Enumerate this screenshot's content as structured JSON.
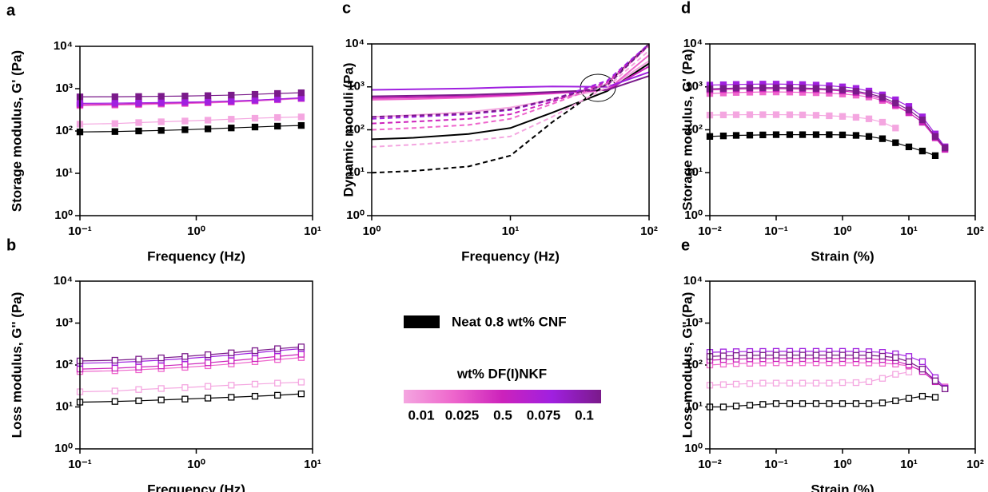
{
  "chart_data": [
    {
      "type": "line",
      "panel": "a",
      "xlabel": "Frequency (Hz)",
      "ylabel": "Storage modulus, G' (Pa)",
      "xscale": "log",
      "yscale": "log",
      "marker": "square",
      "filled": true,
      "xlim": [
        0.1,
        10
      ],
      "ylim": [
        1,
        10000
      ],
      "xticks": [
        {
          "value": 0.1,
          "label": "10⁻¹"
        },
        {
          "value": 1,
          "label": "10⁰"
        },
        {
          "value": 10,
          "label": "10¹"
        }
      ],
      "yticks": [
        {
          "value": 1,
          "label": "10⁰"
        },
        {
          "value": 10,
          "label": "10¹"
        },
        {
          "value": 100,
          "label": "10²"
        },
        {
          "value": 1000,
          "label": "10³"
        },
        {
          "value": 10000,
          "label": "10⁴"
        }
      ],
      "x": [
        0.1,
        0.2,
        0.32,
        0.5,
        0.8,
        1.26,
        2,
        3.2,
        5,
        8
      ],
      "series": [
        {
          "color": "#000000",
          "values": [
            95,
            97,
            100,
            103,
            107,
            112,
            118,
            124,
            130,
            135
          ]
        },
        {
          "color": "#f4a6e0",
          "values": [
            145,
            150,
            158,
            165,
            172,
            180,
            190,
            200,
            208,
            215
          ]
        },
        {
          "color": "#ee66cc",
          "values": [
            400,
            410,
            420,
            432,
            445,
            460,
            480,
            510,
            545,
            580
          ]
        },
        {
          "color": "#cc22bb",
          "values": [
            420,
            430,
            440,
            452,
            465,
            480,
            500,
            530,
            570,
            610
          ]
        },
        {
          "color": "#a020e0",
          "values": [
            450,
            455,
            462,
            470,
            480,
            492,
            510,
            535,
            565,
            600
          ]
        },
        {
          "color": "#7a1a8a",
          "values": [
            640,
            645,
            652,
            660,
            670,
            685,
            705,
            735,
            770,
            800
          ]
        }
      ]
    },
    {
      "type": "line",
      "panel": "b",
      "xlabel": "Frequency (Hz)",
      "ylabel": "Loss modulus, G'' (Pa)",
      "xscale": "log",
      "yscale": "log",
      "marker": "square",
      "filled": false,
      "xlim": [
        0.1,
        10
      ],
      "ylim": [
        1,
        10000
      ],
      "xticks": [
        {
          "value": 0.1,
          "label": "10⁻¹"
        },
        {
          "value": 1,
          "label": "10⁰"
        },
        {
          "value": 10,
          "label": "10¹"
        }
      ],
      "yticks": [
        {
          "value": 1,
          "label": "10⁰"
        },
        {
          "value": 10,
          "label": "10¹"
        },
        {
          "value": 100,
          "label": "10²"
        },
        {
          "value": 1000,
          "label": "10³"
        },
        {
          "value": 10000,
          "label": "10⁴"
        }
      ],
      "x": [
        0.1,
        0.2,
        0.32,
        0.5,
        0.8,
        1.26,
        2,
        3.2,
        5,
        8
      ],
      "series": [
        {
          "color": "#000000",
          "values": [
            13,
            13.5,
            14,
            14.7,
            15.4,
            16.2,
            17,
            18,
            19,
            20.5
          ]
        },
        {
          "color": "#f4a6e0",
          "values": [
            23,
            24,
            26,
            27.5,
            29,
            31,
            33,
            35,
            37,
            39
          ]
        },
        {
          "color": "#ee66cc",
          "values": [
            70,
            73,
            77,
            82,
            88,
            96,
            106,
            120,
            135,
            150
          ]
        },
        {
          "color": "#cc22bb",
          "values": [
            80,
            84,
            89,
            95,
            103,
            113,
            126,
            142,
            160,
            180
          ]
        },
        {
          "color": "#a020e0",
          "values": [
            110,
            115,
            122,
            131,
            142,
            156,
            173,
            195,
            220,
            245
          ]
        },
        {
          "color": "#7a1a8a",
          "values": [
            125,
            130,
            138,
            148,
            160,
            176,
            195,
            220,
            245,
            270
          ]
        }
      ]
    },
    {
      "type": "line",
      "panel": "c",
      "xlabel": "Frequency (Hz)",
      "ylabel": "Dynamic moduli (Pa)",
      "xscale": "log",
      "yscale": "log",
      "xlim": [
        1,
        100
      ],
      "ylim": [
        1,
        10000
      ],
      "xticks": [
        {
          "value": 1,
          "label": "10⁰"
        },
        {
          "value": 10,
          "label": "10¹"
        },
        {
          "value": 100,
          "label": "10²"
        }
      ],
      "yticks": [
        {
          "value": 1,
          "label": "10⁰"
        },
        {
          "value": 10,
          "label": "10¹"
        },
        {
          "value": 100,
          "label": "10²"
        },
        {
          "value": 1000,
          "label": "10³"
        },
        {
          "value": 10000,
          "label": "10⁴"
        }
      ],
      "x": [
        1,
        2,
        5,
        10,
        20,
        50,
        100
      ],
      "series": [
        {
          "color": "#000000",
          "dashed": false,
          "values": [
            60,
            65,
            80,
            110,
            250,
            800,
            3500
          ]
        },
        {
          "color": "#f4a6e0",
          "dashed": false,
          "values": [
            200,
            220,
            260,
            330,
            500,
            900,
            4000
          ]
        },
        {
          "color": "#ee66cc",
          "dashed": false,
          "values": [
            500,
            520,
            560,
            620,
            700,
            850,
            5500
          ]
        },
        {
          "color": "#cc22bb",
          "dashed": false,
          "values": [
            550,
            570,
            600,
            650,
            720,
            850,
            3000
          ]
        },
        {
          "color": "#a020e0",
          "dashed": false,
          "values": [
            850,
            880,
            920,
            980,
            1020,
            1000,
            2200
          ]
        },
        {
          "color": "#7a1a8a",
          "dashed": false,
          "values": [
            600,
            620,
            650,
            700,
            760,
            850,
            1800
          ]
        },
        {
          "color": "#000000",
          "dashed": true,
          "values": [
            10,
            11,
            14,
            25,
            150,
            1200,
            10000
          ]
        },
        {
          "color": "#f4a6e0",
          "dashed": true,
          "values": [
            40,
            45,
            55,
            70,
            200,
            1000,
            7000
          ]
        },
        {
          "color": "#ee66cc",
          "dashed": true,
          "values": [
            100,
            110,
            130,
            180,
            400,
            1200,
            9000
          ]
        },
        {
          "color": "#cc22bb",
          "dashed": true,
          "values": [
            140,
            155,
            180,
            230,
            450,
            1300,
            10000
          ]
        },
        {
          "color": "#a020e0",
          "dashed": true,
          "values": [
            180,
            200,
            230,
            290,
            500,
            1400,
            10000
          ]
        },
        {
          "color": "#7a1a8a",
          "dashed": true,
          "values": [
            200,
            215,
            240,
            300,
            520,
            1100,
            9500
          ]
        }
      ]
    },
    {
      "type": "line",
      "panel": "d",
      "xlabel": "Strain (%)",
      "ylabel": "Storage modulus, G' (Pa)",
      "xscale": "log",
      "yscale": "log",
      "marker": "square",
      "filled": true,
      "xlim": [
        0.01,
        100
      ],
      "ylim": [
        1,
        10000
      ],
      "xticks": [
        {
          "value": 0.01,
          "label": "10⁻²"
        },
        {
          "value": 0.1,
          "label": "10⁻¹"
        },
        {
          "value": 1,
          "label": "10⁰"
        },
        {
          "value": 10,
          "label": "10¹"
        },
        {
          "value": 100,
          "label": "10²"
        }
      ],
      "yticks": [
        {
          "value": 1,
          "label": "10⁰"
        },
        {
          "value": 10,
          "label": "10¹"
        },
        {
          "value": 100,
          "label": "10²"
        },
        {
          "value": 1000,
          "label": "10³"
        },
        {
          "value": 10000,
          "label": "10⁴"
        }
      ],
      "x": [
        0.01,
        0.016,
        0.025,
        0.04,
        0.063,
        0.1,
        0.16,
        0.25,
        0.4,
        0.63,
        1,
        1.6,
        2.5,
        4,
        6.3,
        10,
        16,
        25,
        35
      ],
      "series": [
        {
          "color": "#000000",
          "values": [
            70,
            72,
            74,
            75,
            76,
            77,
            77,
            77,
            77,
            77,
            76,
            74,
            70,
            62,
            50,
            40,
            32,
            25,
            null
          ]
        },
        {
          "color": "#f4a6e0",
          "values": [
            220,
            222,
            224,
            225,
            225,
            225,
            224,
            222,
            218,
            212,
            205,
            195,
            180,
            150,
            110,
            null,
            null,
            null,
            null
          ]
        },
        {
          "color": "#ee66cc",
          "values": [
            700,
            720,
            740,
            750,
            760,
            760,
            755,
            745,
            730,
            710,
            680,
            640,
            580,
            480,
            360,
            250,
            150,
            70,
            40
          ]
        },
        {
          "color": "#cc22bb",
          "values": [
            850,
            870,
            890,
            900,
            905,
            905,
            900,
            890,
            870,
            840,
            800,
            740,
            650,
            520,
            380,
            250,
            150,
            65,
            35
          ]
        },
        {
          "color": "#a020e0",
          "values": [
            1100,
            1120,
            1140,
            1150,
            1160,
            1160,
            1150,
            1130,
            1100,
            1060,
            1000,
            920,
            800,
            650,
            500,
            350,
            200,
            80,
            40
          ]
        },
        {
          "color": "#7a1a8a",
          "values": [
            900,
            920,
            940,
            950,
            955,
            955,
            950,
            940,
            920,
            890,
            850,
            790,
            700,
            570,
            420,
            290,
            170,
            70,
            38
          ]
        }
      ]
    },
    {
      "type": "line",
      "panel": "e",
      "xlabel": "Strain (%)",
      "ylabel": "Loss modulus, G'' (Pa)",
      "xscale": "log",
      "yscale": "log",
      "marker": "square",
      "filled": false,
      "xlim": [
        0.01,
        100
      ],
      "ylim": [
        1,
        10000
      ],
      "xticks": [
        {
          "value": 0.01,
          "label": "10⁻²"
        },
        {
          "value": 0.1,
          "label": "10⁻¹"
        },
        {
          "value": 1,
          "label": "10⁰"
        },
        {
          "value": 10,
          "label": "10¹"
        },
        {
          "value": 100,
          "label": "10²"
        }
      ],
      "yticks": [
        {
          "value": 1,
          "label": "10⁰"
        },
        {
          "value": 10,
          "label": "10¹"
        },
        {
          "value": 100,
          "label": "10²"
        },
        {
          "value": 1000,
          "label": "10³"
        },
        {
          "value": 10000,
          "label": "10⁴"
        }
      ],
      "x": [
        0.01,
        0.016,
        0.025,
        0.04,
        0.063,
        0.1,
        0.16,
        0.25,
        0.4,
        0.63,
        1,
        1.6,
        2.5,
        4,
        6.3,
        10,
        16,
        25,
        35
      ],
      "series": [
        {
          "color": "#000000",
          "values": [
            10,
            10,
            10.5,
            11,
            11.5,
            12,
            12,
            12,
            12,
            12,
            12,
            12,
            12,
            12.5,
            14,
            16,
            18,
            17,
            null
          ]
        },
        {
          "color": "#f4a6e0",
          "values": [
            33,
            34,
            35,
            36,
            37,
            37,
            37,
            37,
            37,
            37,
            38,
            38,
            40,
            48,
            60,
            68,
            null,
            null,
            null
          ]
        },
        {
          "color": "#ee66cc",
          "values": [
            100,
            105,
            108,
            110,
            112,
            113,
            113,
            113,
            113,
            113,
            113,
            113,
            112,
            110,
            105,
            95,
            75,
            45,
            30
          ]
        },
        {
          "color": "#cc22bb",
          "values": [
            130,
            135,
            138,
            140,
            141,
            142,
            142,
            142,
            142,
            142,
            142,
            141,
            140,
            135,
            125,
            100,
            70,
            40,
            28
          ]
        },
        {
          "color": "#a020e0",
          "values": [
            200,
            205,
            208,
            210,
            211,
            212,
            212,
            212,
            212,
            212,
            212,
            211,
            208,
            200,
            185,
            160,
            120,
            50,
            28
          ]
        },
        {
          "color": "#7a1a8a",
          "values": [
            160,
            165,
            168,
            170,
            171,
            172,
            172,
            172,
            172,
            172,
            172,
            171,
            170,
            162,
            150,
            120,
            80,
            42,
            27
          ]
        }
      ]
    }
  ],
  "legend": {
    "neat_label": "Neat 0.8 wt% CNF",
    "neat_color": "#000000",
    "title": "wt% DF(I)NKF",
    "labels": [
      "0.01",
      "0.025",
      "0.5",
      "0.075",
      "0.1"
    ],
    "colors": [
      "#f4a6e0",
      "#ee66cc",
      "#cc22bb",
      "#a020e0",
      "#7a1a8a"
    ]
  }
}
